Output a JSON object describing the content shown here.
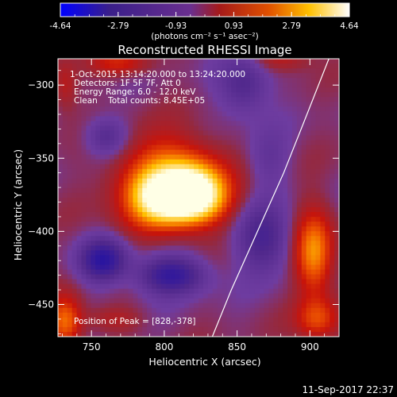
{
  "colorbar": {
    "ticks": [
      "-4.64",
      "-2.79",
      "-0.93",
      "0.93",
      "2.79",
      "4.64"
    ],
    "units": "(photons cm⁻² s⁻¹ asec⁻²)",
    "colors": [
      "#0000ff",
      "#3a1f8a",
      "#6a2f8f",
      "#a51a1a",
      "#e05000",
      "#ffc000",
      "#ffffff"
    ]
  },
  "title": "Reconstructed RHESSI Image",
  "annotations": {
    "time": "1-Oct-2015 13:14:20.000 to 13:24:20.000",
    "detectors": "Detectors: 1F 5F 7F, Att 0",
    "energy": "Energy Range: 6.0 - 12.0 keV",
    "clean": "Clean    Total counts: 8.45E+05",
    "peak": "Position of Peak = [828,-378]"
  },
  "footer": {
    "timestamp": "11-Sep-2017 22:37"
  },
  "chart_data": {
    "type": "heatmap",
    "title": "Reconstructed RHESSI Image",
    "xlabel": "Heliocentric X (arcsec)",
    "ylabel": "Heliocentric Y (arcsec)",
    "xlim": [
      727,
      920
    ],
    "ylim": [
      -472,
      -282
    ],
    "xticks": [
      750,
      800,
      850,
      900
    ],
    "yticks": [
      -300,
      -350,
      -400,
      -450
    ],
    "colorbar_range": [
      -4.64,
      4.64
    ],
    "peak": [
      828,
      -378
    ],
    "blobs": [
      {
        "x": 802,
        "y": -362,
        "sx": 22,
        "sy": 18,
        "a": 2.8
      },
      {
        "x": 815,
        "y": -378,
        "sx": 18,
        "sy": 12,
        "a": 3.6
      },
      {
        "x": 822,
        "y": -372,
        "sx": 14,
        "sy": 14,
        "a": 2.2
      },
      {
        "x": 793,
        "y": -378,
        "sx": 14,
        "sy": 12,
        "a": 1.8
      },
      {
        "x": 790,
        "y": -395,
        "sx": 20,
        "sy": 10,
        "a": 0.6
      },
      {
        "x": 760,
        "y": -335,
        "sx": 10,
        "sy": 9,
        "a": -1.4
      },
      {
        "x": 758,
        "y": -420,
        "sx": 11,
        "sy": 10,
        "a": -2.8
      },
      {
        "x": 805,
        "y": -430,
        "sx": 16,
        "sy": 9,
        "a": -2.6
      },
      {
        "x": 855,
        "y": -300,
        "sx": 12,
        "sy": 14,
        "a": -1.6
      },
      {
        "x": 868,
        "y": -405,
        "sx": 13,
        "sy": 16,
        "a": -1.8
      },
      {
        "x": 872,
        "y": -350,
        "sx": 10,
        "sy": 14,
        "a": -0.8
      },
      {
        "x": 732,
        "y": -462,
        "sx": 8,
        "sy": 12,
        "a": 2.4
      },
      {
        "x": 903,
        "y": -415,
        "sx": 9,
        "sy": 20,
        "a": 2.8
      },
      {
        "x": 905,
        "y": -460,
        "sx": 10,
        "sy": 10,
        "a": 1.8
      },
      {
        "x": 770,
        "y": -285,
        "sx": 14,
        "sy": 6,
        "a": 1.4
      },
      {
        "x": 732,
        "y": -300,
        "sx": 6,
        "sy": 12,
        "a": 1.0
      },
      {
        "x": 765,
        "y": -460,
        "sx": 14,
        "sy": 6,
        "a": 0.8
      },
      {
        "x": 880,
        "y": -282,
        "sx": 14,
        "sy": 6,
        "a": 1.0
      }
    ],
    "limb": [
      [
        913,
        -282
      ],
      [
        898,
        -320
      ],
      [
        882,
        -360
      ],
      [
        864,
        -400
      ],
      [
        846,
        -440
      ],
      [
        833,
        -472
      ]
    ]
  }
}
